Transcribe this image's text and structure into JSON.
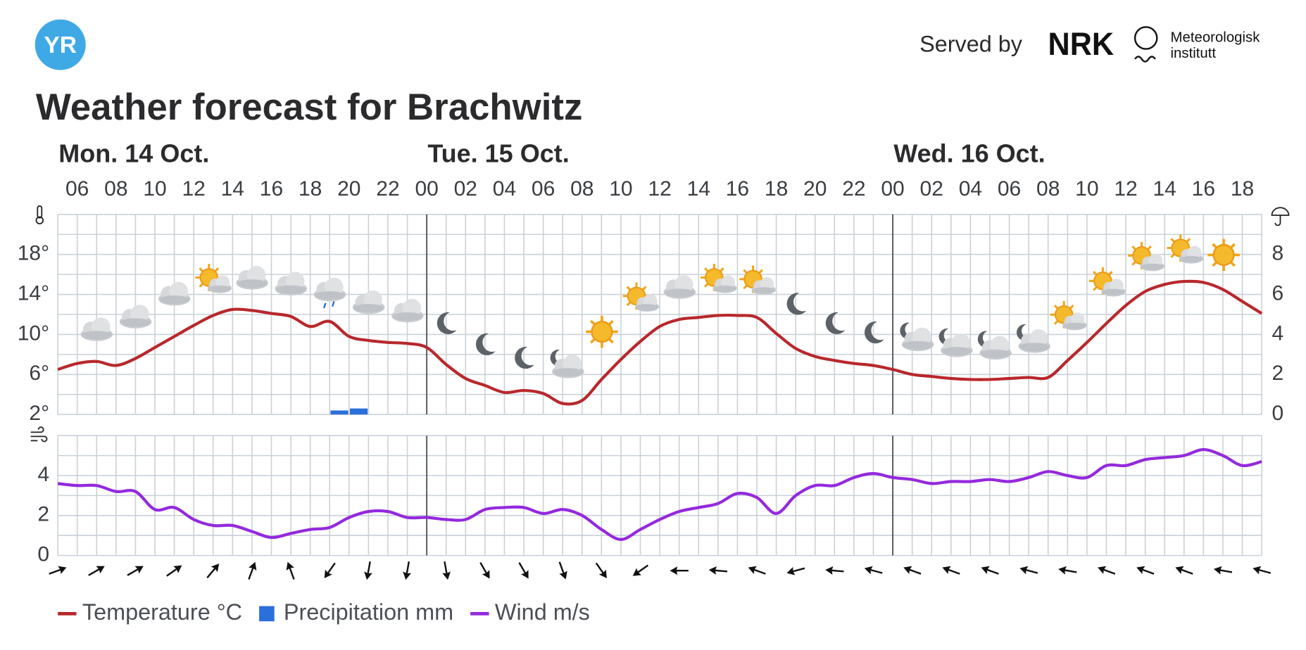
{
  "header": {
    "logo": "YR",
    "served_by": "Served by",
    "partner_1": "NRK",
    "partner_2": [
      "Meteorologisk",
      "institutt"
    ]
  },
  "chart_data": [
    {
      "type": "line",
      "title": "Weather forecast for Brachwitz",
      "x_groups": [
        "Mon. 14 Oct.",
        "Tue. 15 Oct.",
        "Wed. 16 Oct."
      ],
      "categories": [
        null,
        "06",
        null,
        "08",
        null,
        "10",
        null,
        "12",
        null,
        "14",
        null,
        "16",
        null,
        "18",
        null,
        "20",
        null,
        "22",
        null,
        "00",
        null,
        "02",
        null,
        "04",
        null,
        "06",
        null,
        "08",
        null,
        "10",
        null,
        "12",
        null,
        "14",
        null,
        "16",
        null,
        "18",
        null,
        "20",
        null,
        "22",
        null,
        "00",
        null,
        "02",
        null,
        "04",
        null,
        "06",
        null,
        "08",
        null,
        "10",
        null,
        "12",
        null,
        "14",
        null,
        "16",
        null,
        "18",
        null
      ],
      "series": [
        {
          "name": "Temperature °C",
          "color": "#b8282c",
          "values": [
            6.5,
            7.1,
            7.3,
            6.9,
            7.6,
            8.7,
            9.8,
            10.9,
            11.9,
            12.5,
            12.4,
            12.1,
            11.8,
            10.8,
            11.3,
            9.8,
            9.4,
            9.2,
            9.1,
            8.7,
            7.0,
            5.6,
            4.9,
            4.2,
            4.4,
            4.1,
            3.1,
            3.4,
            5.5,
            7.5,
            9.3,
            10.8,
            11.5,
            11.7,
            11.9,
            11.9,
            11.7,
            10.1,
            8.6,
            7.8,
            7.4,
            7.1,
            6.9,
            6.5,
            6.0,
            5.8,
            5.6,
            5.5,
            5.5,
            5.6,
            5.7,
            5.7,
            7.4,
            9.2,
            11.1,
            12.9,
            14.3,
            15.0,
            15.3,
            15.2,
            14.5,
            13.3,
            12.1
          ]
        },
        {
          "name": "Precipitation mm",
          "color": "#2a6fdb",
          "type": "bar",
          "axis": "y2",
          "values": [
            0,
            0,
            0,
            0,
            0,
            0,
            0,
            0,
            0,
            0,
            0,
            0,
            0,
            0,
            0.2,
            0.3,
            0,
            0,
            0,
            0,
            0,
            0,
            0,
            0,
            0,
            0,
            0,
            0,
            0,
            0,
            0,
            0,
            0,
            0,
            0,
            0,
            0,
            0,
            0,
            0,
            0,
            0,
            0,
            0,
            0,
            0,
            0,
            0,
            0,
            0,
            0,
            0,
            0,
            0,
            0,
            0,
            0,
            0,
            0,
            0,
            0,
            0,
            0
          ]
        }
      ],
      "ylim": [
        2,
        22
      ],
      "yticks": [
        {
          "value": 2,
          "label": "2°"
        },
        {
          "value": 6,
          "label": "6°"
        },
        {
          "value": 10,
          "label": "10°"
        },
        {
          "value": 14,
          "label": "14°"
        },
        {
          "value": 18,
          "label": "18°"
        }
      ],
      "y2lim": [
        0,
        10
      ],
      "y2ticks": [
        0,
        2,
        4,
        6,
        8
      ],
      "grid": true
    },
    {
      "type": "line",
      "series": [
        {
          "name": "Wind m/s",
          "color": "#9429dd",
          "values": [
            3.6,
            3.5,
            3.5,
            3.2,
            3.2,
            2.3,
            2.4,
            1.8,
            1.5,
            1.5,
            1.2,
            0.9,
            1.1,
            1.3,
            1.4,
            1.9,
            2.2,
            2.2,
            1.9,
            1.9,
            1.8,
            1.8,
            2.3,
            2.4,
            2.4,
            2.1,
            2.3,
            2.0,
            1.3,
            0.8,
            1.3,
            1.8,
            2.2,
            2.4,
            2.6,
            3.1,
            2.9,
            2.1,
            3.0,
            3.5,
            3.5,
            3.9,
            4.1,
            3.9,
            3.8,
            3.6,
            3.7,
            3.7,
            3.8,
            3.7,
            3.9,
            4.2,
            4.0,
            3.9,
            4.5,
            4.5,
            4.8,
            4.9,
            5.0,
            5.3,
            5.0,
            4.5,
            4.7
          ]
        }
      ],
      "wind_direction": [
        70,
        60,
        60,
        55,
        40,
        20,
        340,
        215,
        190,
        190,
        170,
        150,
        150,
        160,
        145,
        235,
        270,
        275,
        290,
        255,
        275,
        285,
        290,
        290,
        290,
        285,
        280,
        290,
        290,
        290,
        280,
        285
      ],
      "ylim": [
        0,
        6
      ],
      "yticks": [
        0,
        2,
        4
      ],
      "grid": true
    }
  ]
}
